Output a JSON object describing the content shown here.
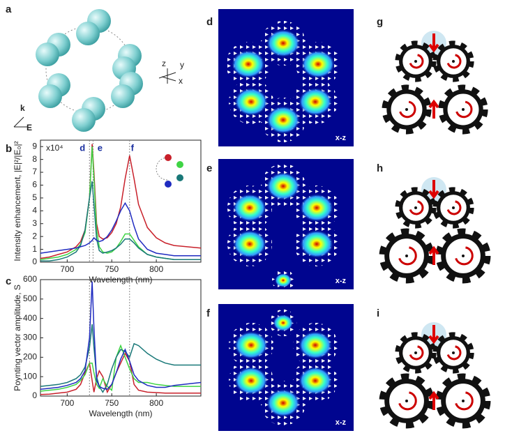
{
  "panel_labels": [
    "a",
    "b",
    "c",
    "d",
    "e",
    "f",
    "g",
    "h",
    "i"
  ],
  "panel_a": {
    "axis_labels": [
      "z",
      "y",
      "x"
    ],
    "k": "k",
    "E": "E"
  },
  "field_maps": [
    "x-z",
    "x-z",
    "x-z"
  ],
  "chart_data": [
    {
      "type": "line",
      "x_label": "Wavelength (nm)",
      "y_label": "Intensity enhancement, |E|²/|E₀|²",
      "multiplier": "x10⁴",
      "x": [
        670,
        680,
        690,
        700,
        710,
        715,
        720,
        725,
        728,
        730,
        733,
        736,
        740,
        745,
        750,
        755,
        760,
        765,
        770,
        775,
        780,
        790,
        800,
        810,
        820,
        850
      ],
      "xlim": [
        670,
        850
      ],
      "xticks": [
        700,
        750,
        800
      ],
      "ylim": [
        0,
        9.5
      ],
      "yticks": [
        0,
        1,
        2,
        3,
        4,
        5,
        6,
        7,
        8,
        9
      ],
      "markers": [
        {
          "label": "d",
          "x": 725
        },
        {
          "label": "e",
          "x": 729
        },
        {
          "label": "f",
          "x": 770
        }
      ],
      "series": [
        {
          "color": "#c8202a",
          "values": [
            0.3,
            0.4,
            0.6,
            0.8,
            1.2,
            1.6,
            2.5,
            5,
            9.2,
            7,
            3,
            2,
            1.8,
            1.9,
            2.3,
            3,
            4.3,
            6.5,
            8.3,
            6.5,
            4.5,
            2.7,
            1.9,
            1.5,
            1.3,
            1.1
          ]
        },
        {
          "color": "#3fd444",
          "values": [
            0.2,
            0.3,
            0.4,
            0.6,
            1,
            1.4,
            2.3,
            5,
            9,
            6.5,
            2.5,
            1.2,
            0.8,
            0.7,
            0.8,
            1.1,
            1.6,
            2.2,
            2.2,
            1.7,
            1.2,
            0.6,
            0.4,
            0.3,
            0.2,
            0.2
          ]
        },
        {
          "color": "#197878",
          "values": [
            0.1,
            0.1,
            0.2,
            0.4,
            0.8,
            1.3,
            2.5,
            5,
            6.3,
            4.5,
            1.8,
            0.9,
            0.7,
            0.8,
            0.9,
            1.1,
            1.4,
            1.8,
            1.8,
            1.5,
            1.1,
            0.6,
            0.4,
            0.3,
            0.2,
            0.2
          ]
        },
        {
          "color": "#1f2bc0",
          "values": [
            0.7,
            0.8,
            0.9,
            1,
            1.1,
            1.2,
            1.3,
            1.5,
            1.7,
            1.9,
            1.7,
            1.6,
            1.7,
            2,
            2.5,
            3.2,
            4,
            4.6,
            4,
            2.8,
            1.8,
            1,
            0.7,
            0.6,
            0.5,
            0.5
          ]
        }
      ]
    },
    {
      "type": "line",
      "x_label": "Wavelength (nm)",
      "y_label": "Poynting vector amplitude, S",
      "x": [
        670,
        680,
        690,
        700,
        710,
        715,
        720,
        725,
        728,
        730,
        733,
        736,
        740,
        745,
        750,
        755,
        760,
        765,
        770,
        775,
        780,
        790,
        800,
        810,
        820,
        850
      ],
      "xlim": [
        670,
        850
      ],
      "xticks": [
        700,
        750,
        800
      ],
      "ylim": [
        0,
        600
      ],
      "yticks": [
        0,
        100,
        200,
        300,
        400,
        500,
        600
      ],
      "markers": [
        {
          "x": 725
        },
        {
          "x": 770
        }
      ],
      "series": [
        {
          "color": "#c8202a",
          "values": [
            8,
            10,
            15,
            20,
            35,
            60,
            120,
            170,
            80,
            20,
            90,
            130,
            100,
            20,
            60,
            120,
            170,
            220,
            180,
            60,
            30,
            20,
            18,
            15,
            15,
            15
          ]
        },
        {
          "color": "#3fd444",
          "values": [
            25,
            30,
            35,
            45,
            60,
            80,
            110,
            170,
            170,
            120,
            60,
            40,
            90,
            50,
            30,
            200,
            260,
            200,
            140,
            90,
            70,
            70,
            60,
            55,
            50,
            50
          ]
        },
        {
          "color": "#197878",
          "values": [
            50,
            55,
            60,
            70,
            90,
            110,
            150,
            250,
            370,
            250,
            100,
            50,
            20,
            60,
            140,
            200,
            240,
            230,
            200,
            270,
            260,
            220,
            190,
            170,
            160,
            160
          ]
        },
        {
          "color": "#1f2bc0",
          "values": [
            35,
            40,
            45,
            55,
            70,
            90,
            130,
            300,
            590,
            350,
            80,
            50,
            40,
            35,
            60,
            120,
            190,
            240,
            180,
            110,
            80,
            55,
            45,
            45,
            55,
            70
          ]
        }
      ]
    }
  ]
}
